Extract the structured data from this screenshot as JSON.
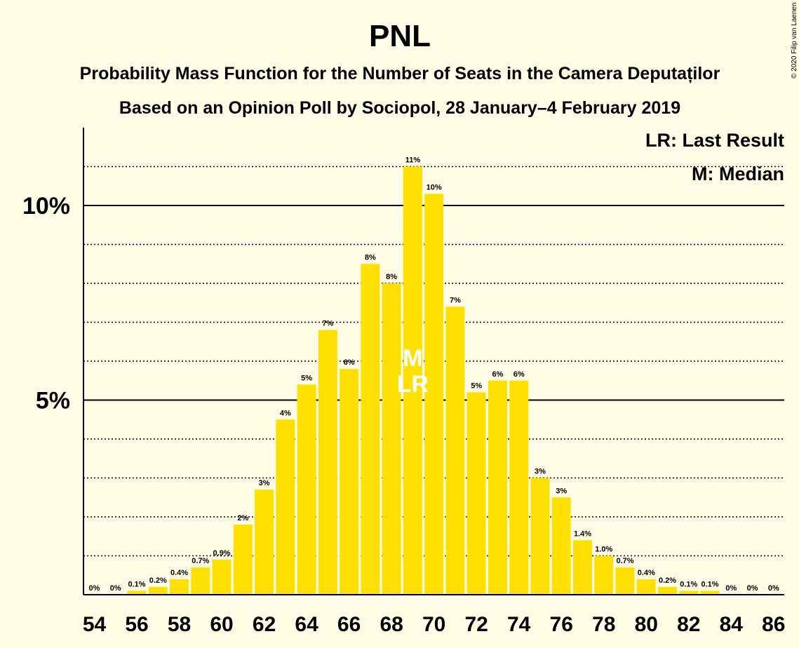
{
  "title": "PNL",
  "subtitle1": "Probability Mass Function for the Number of Seats in the Camera Deputaților",
  "subtitle2": "Based on an Opinion Poll by Sociopol, 28 January–4 February 2019",
  "legend": {
    "lr": "LR: Last Result",
    "m": "M: Median"
  },
  "copyright": "© 2020 Filip van Laenen",
  "colors": {
    "background": "#FFFDE6",
    "bar": "#FFE000",
    "axis": "#000000"
  },
  "chart_data": {
    "type": "bar",
    "x": [
      54,
      55,
      56,
      57,
      58,
      59,
      60,
      61,
      62,
      63,
      64,
      65,
      66,
      67,
      68,
      69,
      70,
      71,
      72,
      73,
      74,
      75,
      76,
      77,
      78,
      79,
      80,
      81,
      82,
      83,
      84,
      85,
      86
    ],
    "values": [
      0,
      0,
      0.1,
      0.2,
      0.4,
      0.7,
      0.9,
      1.8,
      2.7,
      4.5,
      5.4,
      6.8,
      5.8,
      8.5,
      8.0,
      11.0,
      10.3,
      7.4,
      5.2,
      5.5,
      5.5,
      3.0,
      2.5,
      1.4,
      1.0,
      0.7,
      0.4,
      0.2,
      0.1,
      0.1,
      0,
      0,
      0
    ],
    "labels": [
      "0%",
      "0%",
      "0.1%",
      "0.2%",
      "0.4%",
      "0.7%",
      "0.9%",
      "2%",
      "3%",
      "4%",
      "5%",
      "7%",
      "6%",
      "8%",
      "8%",
      "11%",
      "10%",
      "7%",
      "5%",
      "6%",
      "6%",
      "3%",
      "3%",
      "1.4%",
      "1.0%",
      "0.7%",
      "0.4%",
      "0.2%",
      "0.1%",
      "0.1%",
      "0%",
      "0%",
      "0%"
    ],
    "x_ticks": [
      54,
      56,
      58,
      60,
      62,
      64,
      66,
      68,
      70,
      72,
      74,
      76,
      78,
      80,
      82,
      84,
      86
    ],
    "y_ticks": [
      {
        "value": 5,
        "label": "5%"
      },
      {
        "value": 10,
        "label": "10%"
      }
    ],
    "y_minor_gridlines": [
      1,
      2,
      3,
      4,
      6,
      7,
      8,
      9,
      11
    ],
    "ylim": [
      0,
      12
    ],
    "median": 69,
    "last_result": 69,
    "median_label": "M",
    "last_result_label": "LR"
  }
}
